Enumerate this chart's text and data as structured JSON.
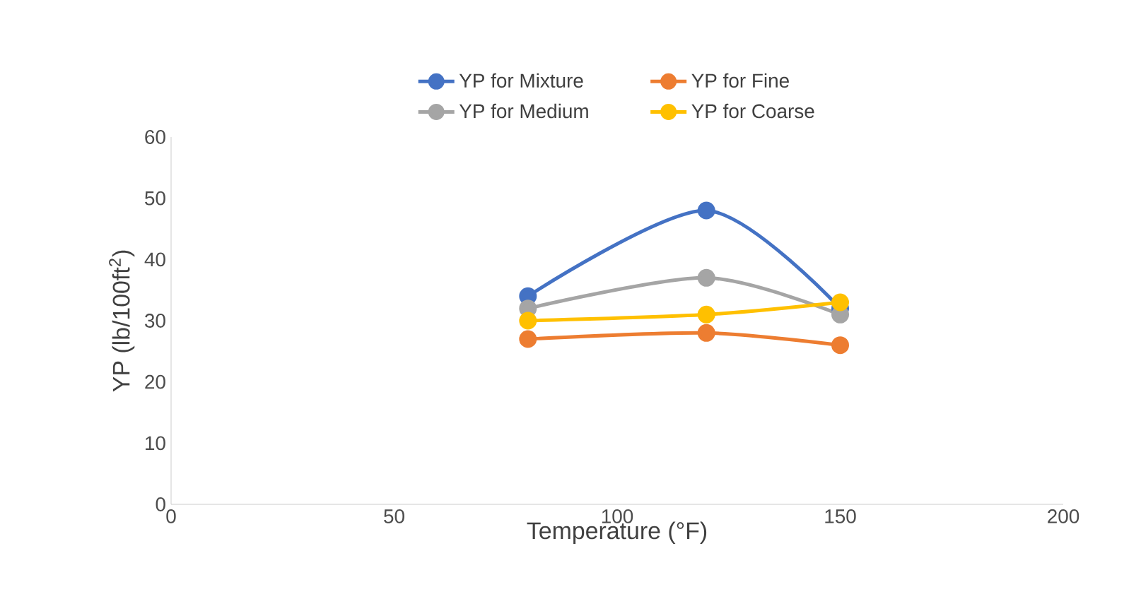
{
  "chart_data": {
    "type": "line",
    "xlabel": "Temperature (°F)",
    "ylabel": "YP (lb/100ft$^{2}$)",
    "x": [
      80,
      120,
      150
    ],
    "series": [
      {
        "name": "YP for Mixture",
        "color": "#4472c4",
        "values": [
          34,
          48,
          32
        ]
      },
      {
        "name": "YP for Fine",
        "color": "#ed7d31",
        "values": [
          27,
          28,
          26
        ]
      },
      {
        "name": "YP for Medium",
        "color": "#a5a5a5",
        "values": [
          32,
          37,
          31
        ]
      },
      {
        "name": "YP for Coarse",
        "color": "#ffc000",
        "values": [
          30,
          31,
          33
        ]
      }
    ],
    "xlim": [
      0,
      200
    ],
    "xticks": [
      0,
      50,
      100,
      150,
      200
    ],
    "ylim": [
      0,
      60
    ],
    "yticks": [
      0,
      10,
      20,
      30,
      40,
      50,
      60
    ],
    "grid": false,
    "legend": "top",
    "marker": "circle",
    "line_style": "solid"
  }
}
